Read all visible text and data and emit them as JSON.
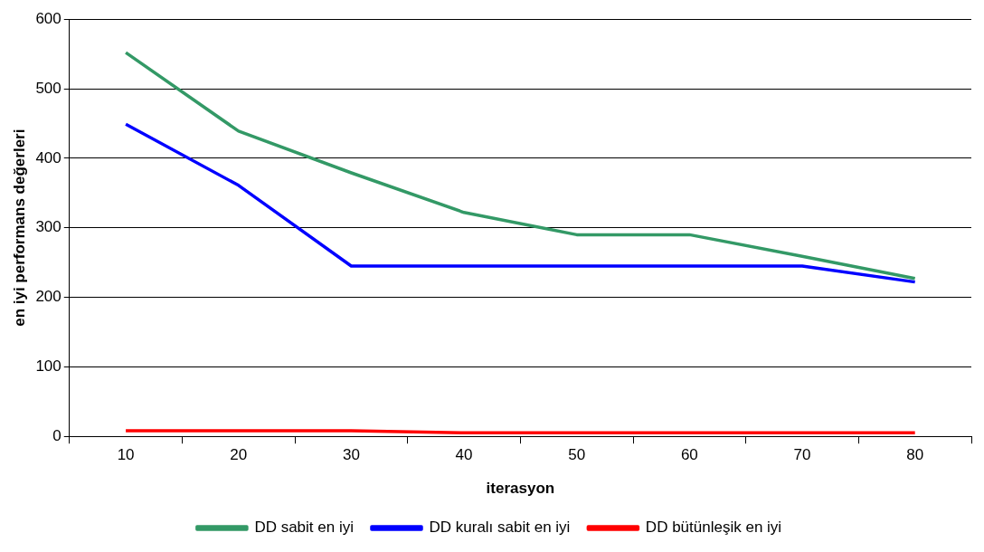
{
  "chart_data": {
    "type": "line",
    "xlabel": "iterasyon",
    "ylabel": "en iyi performans değerleri",
    "categories": [
      "10",
      "20",
      "30",
      "40",
      "50",
      "60",
      "70",
      "80"
    ],
    "series": [
      {
        "name": "DD sabit en iyi",
        "color": "#339966",
        "values": [
          552,
          439,
          379,
          322,
          290,
          290,
          259,
          227
        ]
      },
      {
        "name": "DD kuralı sabit en iyi",
        "color": "#0000ff",
        "values": [
          449,
          361,
          245,
          245,
          245,
          245,
          245,
          222
        ]
      },
      {
        "name": "DD bütünleşik en iyi",
        "color": "#ff0000",
        "values": [
          8,
          8,
          8,
          5,
          5,
          5,
          5,
          5
        ]
      }
    ],
    "ylim": [
      0,
      600
    ],
    "yticks": [
      0,
      100,
      200,
      300,
      400,
      500,
      600
    ],
    "grid": "y",
    "legend": "bottom",
    "marker": "none",
    "line_style": "solid"
  }
}
